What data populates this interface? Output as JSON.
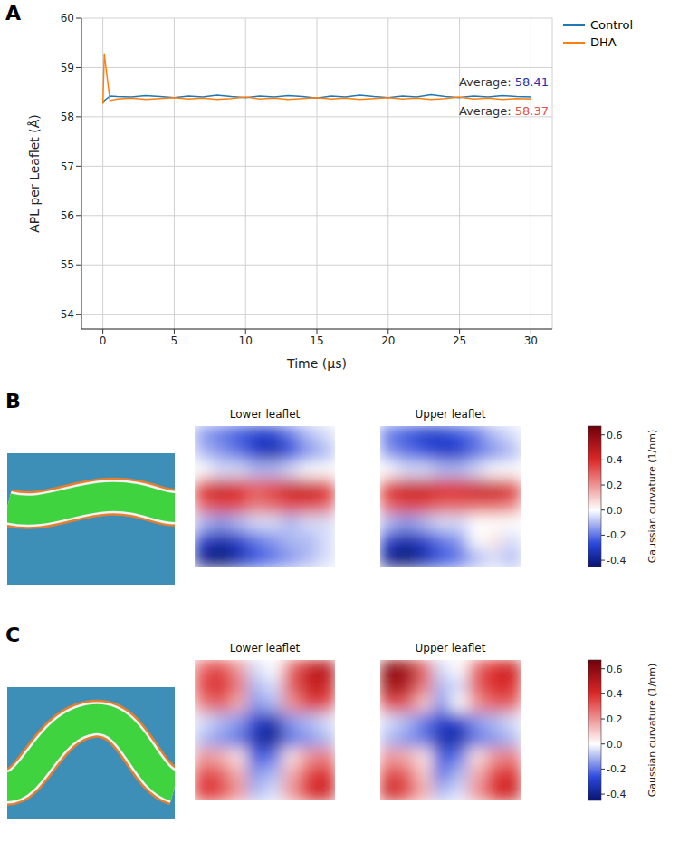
{
  "chart_data": [
    {
      "label": "A",
      "type": "line",
      "x_label": "Time (µs)",
      "y_label": "APL per Leaflet (Å)",
      "xlim": [
        -1.5,
        31.5
      ],
      "xticks": [
        0,
        5,
        10,
        15,
        20,
        25,
        30
      ],
      "ylim": [
        53.7,
        60
      ],
      "yticks": [
        54,
        55,
        56,
        57,
        58,
        59,
        60
      ],
      "grid": true,
      "legend": "right",
      "x": [
        0,
        0.1,
        0.5,
        1,
        2,
        3,
        4,
        5,
        6,
        7,
        8,
        9,
        10,
        11,
        12,
        13,
        14,
        15,
        16,
        17,
        18,
        19,
        20,
        21,
        22,
        23,
        24,
        25,
        26,
        27,
        28,
        29,
        30
      ],
      "series": [
        {
          "name": "Control",
          "color": "#1f77b4",
          "values": [
            58.28,
            58.33,
            58.42,
            58.41,
            58.4,
            58.43,
            58.41,
            58.39,
            58.42,
            58.4,
            58.44,
            58.41,
            58.39,
            58.42,
            58.4,
            58.43,
            58.41,
            58.38,
            58.42,
            58.4,
            58.44,
            58.41,
            58.39,
            58.42,
            58.4,
            58.45,
            58.41,
            58.39,
            58.42,
            58.4,
            58.43,
            58.41,
            58.4
          ]
        },
        {
          "name": "DHA",
          "color": "#ff7f0e",
          "values": [
            58.26,
            59.27,
            58.33,
            58.36,
            58.38,
            58.35,
            58.37,
            58.39,
            58.36,
            58.38,
            58.35,
            58.37,
            58.4,
            58.36,
            58.38,
            58.35,
            58.37,
            58.39,
            58.36,
            58.38,
            58.35,
            58.37,
            58.39,
            58.36,
            58.38,
            58.35,
            58.37,
            58.4,
            58.36,
            58.38,
            58.35,
            58.37,
            58.36
          ]
        }
      ],
      "annotations": [
        {
          "text": "Average:",
          "value": 58.41,
          "color": "#1f2fa8"
        },
        {
          "text": "Average:",
          "value": 58.37,
          "color": "#e0504a"
        }
      ]
    },
    {
      "label": "B",
      "type": "heatmap",
      "tick_labels": false,
      "panels": [
        {
          "title": "Lower leaflet",
          "cells": [
            [
              -0.15,
              -0.2,
              -0.25,
              -0.3,
              -0.3,
              -0.2,
              -0.1,
              -0.05
            ],
            [
              -0.1,
              -0.15,
              -0.2,
              -0.3,
              -0.35,
              -0.25,
              -0.15,
              -0.1
            ],
            [
              0.0,
              -0.05,
              -0.05,
              -0.1,
              -0.1,
              -0.05,
              0.0,
              0.0
            ],
            [
              0.4,
              0.45,
              0.4,
              0.3,
              0.35,
              0.45,
              0.45,
              0.4
            ],
            [
              0.3,
              0.35,
              0.35,
              0.25,
              0.3,
              0.35,
              0.35,
              0.3
            ],
            [
              -0.1,
              -0.15,
              -0.1,
              -0.05,
              -0.05,
              -0.1,
              -0.05,
              -0.05
            ],
            [
              -0.3,
              -0.35,
              -0.3,
              -0.2,
              -0.15,
              -0.1,
              -0.1,
              -0.05
            ],
            [
              -0.4,
              -0.45,
              -0.35,
              -0.25,
              -0.2,
              -0.15,
              -0.1,
              -0.05
            ]
          ]
        },
        {
          "title": "Upper leaflet",
          "cells": [
            [
              -0.2,
              -0.25,
              -0.3,
              -0.3,
              -0.25,
              -0.2,
              -0.1,
              -0.05
            ],
            [
              -0.15,
              -0.2,
              -0.25,
              -0.3,
              -0.3,
              -0.2,
              -0.15,
              -0.1
            ],
            [
              0.0,
              -0.05,
              -0.05,
              -0.1,
              -0.1,
              -0.05,
              0.0,
              0.0
            ],
            [
              0.4,
              0.45,
              0.45,
              0.4,
              0.4,
              0.45,
              0.45,
              0.4
            ],
            [
              0.3,
              0.35,
              0.35,
              0.3,
              0.3,
              0.3,
              0.3,
              0.25
            ],
            [
              -0.1,
              -0.15,
              -0.1,
              -0.05,
              -0.05,
              0.0,
              0.0,
              0.0
            ],
            [
              -0.3,
              -0.35,
              -0.3,
              -0.2,
              -0.15,
              0.0,
              0.05,
              -0.05
            ],
            [
              -0.4,
              -0.45,
              -0.35,
              -0.25,
              -0.2,
              -0.1,
              -0.05,
              -0.1
            ]
          ]
        }
      ],
      "colorbar": {
        "label": "Gaussian curvature (1/nm)",
        "range": [
          -0.45,
          0.67
        ],
        "ticks": [
          -0.4,
          -0.2,
          {
            "value": 0,
            "label": "0.0"
          },
          0.2,
          0.4,
          0.6
        ]
      }
    },
    {
      "label": "C",
      "type": "heatmap",
      "tick_labels": false,
      "panels": [
        {
          "title": "Lower leaflet",
          "cells": [
            [
              0.3,
              0.35,
              0.2,
              -0.05,
              0.0,
              0.3,
              0.45,
              0.5
            ],
            [
              0.35,
              0.4,
              0.25,
              -0.1,
              -0.05,
              0.3,
              0.45,
              0.45
            ],
            [
              0.25,
              0.3,
              0.15,
              -0.15,
              -0.1,
              0.2,
              0.35,
              0.35
            ],
            [
              -0.05,
              -0.1,
              -0.15,
              -0.3,
              -0.35,
              -0.15,
              -0.1,
              -0.05
            ],
            [
              -0.1,
              -0.15,
              -0.2,
              -0.35,
              -0.4,
              -0.2,
              -0.15,
              -0.1
            ],
            [
              0.2,
              0.15,
              0.05,
              -0.25,
              -0.2,
              0.05,
              0.2,
              0.25
            ],
            [
              0.35,
              0.3,
              0.15,
              -0.15,
              -0.1,
              0.15,
              0.35,
              0.4
            ],
            [
              0.4,
              0.35,
              0.2,
              -0.1,
              -0.05,
              0.2,
              0.4,
              0.45
            ]
          ]
        },
        {
          "title": "Upper leaflet",
          "cells": [
            [
              0.6,
              0.55,
              0.3,
              -0.05,
              0.0,
              0.3,
              0.4,
              0.45
            ],
            [
              0.55,
              0.5,
              0.25,
              -0.1,
              -0.05,
              0.3,
              0.4,
              0.4
            ],
            [
              0.35,
              0.3,
              0.1,
              -0.15,
              0.0,
              0.2,
              0.3,
              0.3
            ],
            [
              -0.05,
              -0.1,
              -0.2,
              -0.3,
              -0.3,
              -0.15,
              -0.1,
              -0.05
            ],
            [
              -0.1,
              -0.15,
              -0.2,
              -0.35,
              -0.35,
              -0.2,
              -0.15,
              -0.1
            ],
            [
              0.2,
              0.15,
              0.05,
              -0.25,
              -0.2,
              0.05,
              0.2,
              0.25
            ],
            [
              0.35,
              0.3,
              0.1,
              -0.2,
              -0.1,
              0.15,
              0.35,
              0.4
            ],
            [
              0.45,
              0.35,
              0.15,
              -0.1,
              -0.05,
              0.2,
              0.4,
              0.45
            ]
          ]
        }
      ],
      "colorbar": {
        "label": "Gaussian curvature (1/nm)",
        "range": [
          -0.45,
          0.67
        ],
        "ticks": [
          -0.4,
          -0.2,
          {
            "value": 0,
            "label": "0.0"
          },
          0.2,
          0.4,
          0.6
        ]
      }
    }
  ]
}
